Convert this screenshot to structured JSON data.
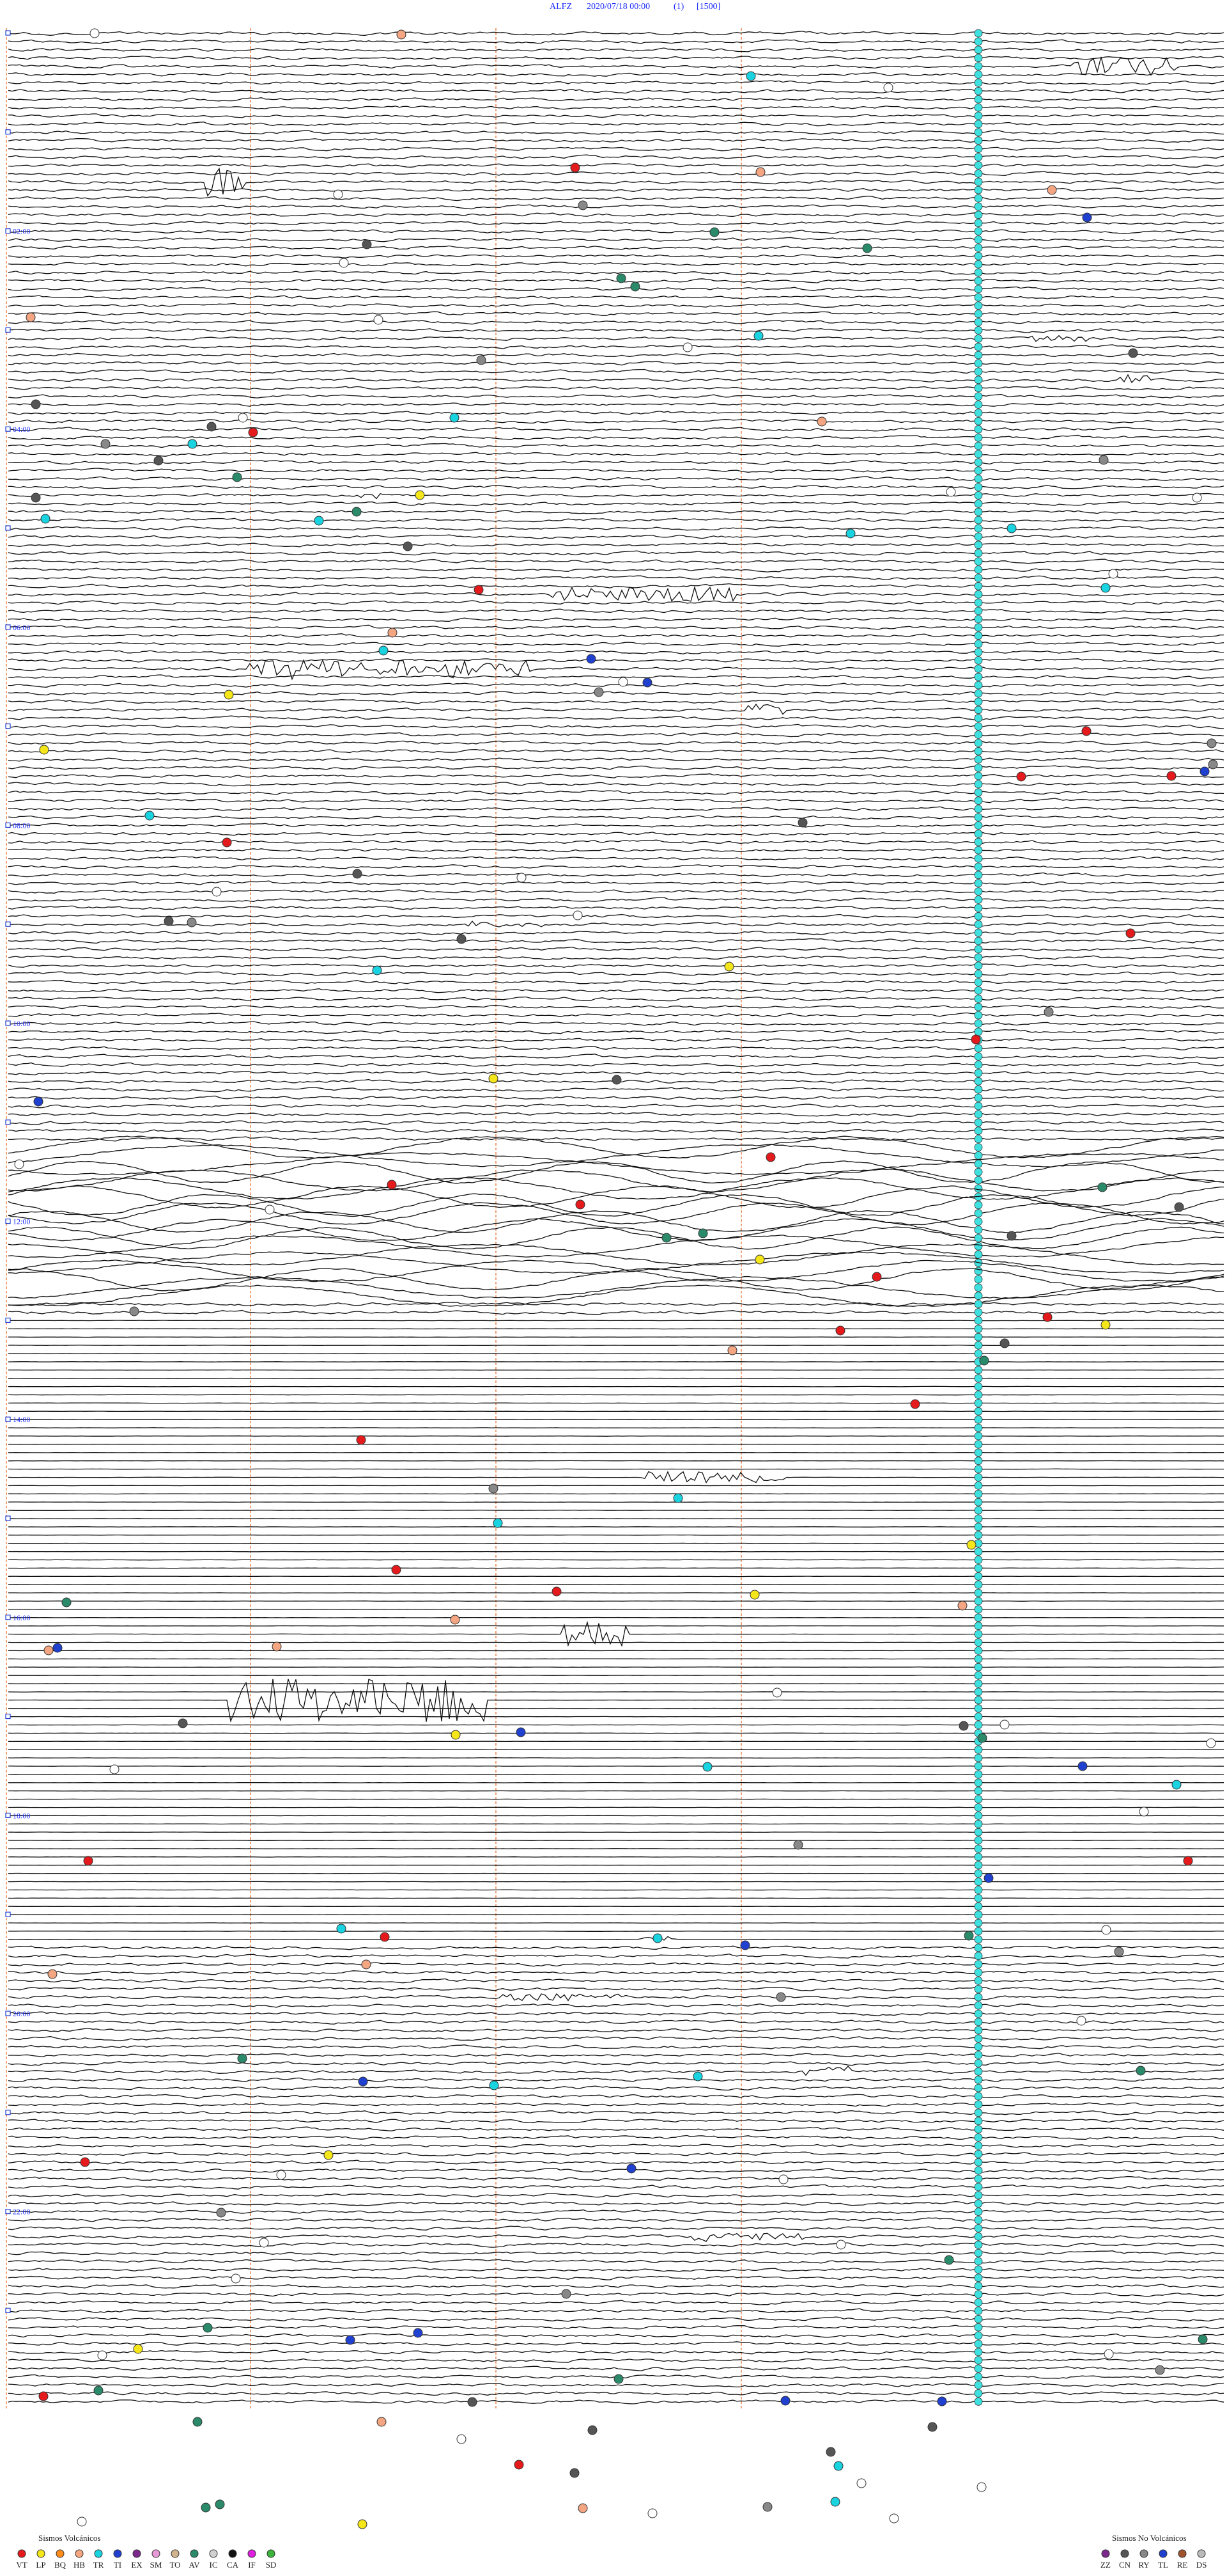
{
  "header": {
    "station": "ALFZ",
    "datetime": "2020/07/18 00:00",
    "channel": "(1)",
    "scale": "[1500]"
  },
  "time_labels": [
    "02:00",
    "04:00",
    "06:00",
    "08:00",
    "10:00",
    "12:00",
    "14:00",
    "16:00",
    "18:00",
    "20:00",
    "22:00"
  ],
  "legend_volcanic": {
    "title": "Sismos Volcánicos",
    "items": [
      {
        "code": "VT",
        "color": "#e41a1c"
      },
      {
        "code": "LP",
        "color": "#f5e61a"
      },
      {
        "code": "BQ",
        "color": "#ff8c1a"
      },
      {
        "code": "HB",
        "color": "#f4a582"
      },
      {
        "code": "TR",
        "color": "#19d3e0"
      },
      {
        "code": "TI",
        "color": "#2040d0"
      },
      {
        "code": "EX",
        "color": "#7b2a8c"
      },
      {
        "code": "SM",
        "color": "#e89ad8"
      },
      {
        "code": "TO",
        "color": "#d2b48c"
      },
      {
        "code": "AV",
        "color": "#2a8a6a"
      },
      {
        "code": "IC",
        "color": "#d0d0d0"
      },
      {
        "code": "CA",
        "color": "#111111"
      },
      {
        "code": "IF",
        "color": "#e020e0"
      },
      {
        "code": "SD",
        "color": "#3cb43c"
      }
    ]
  },
  "legend_non_volcanic": {
    "title": "Sismos No Volcánicos",
    "items": [
      {
        "code": "ZZ",
        "color": "#7b2a8c"
      },
      {
        "code": "CN",
        "color": "#555555"
      },
      {
        "code": "RY",
        "color": "#888888"
      },
      {
        "code": "TL",
        "color": "#2040d0"
      },
      {
        "code": "RE",
        "color": "#a0522d"
      },
      {
        "code": "DS",
        "color": "#bbbbbb"
      }
    ]
  }
}
